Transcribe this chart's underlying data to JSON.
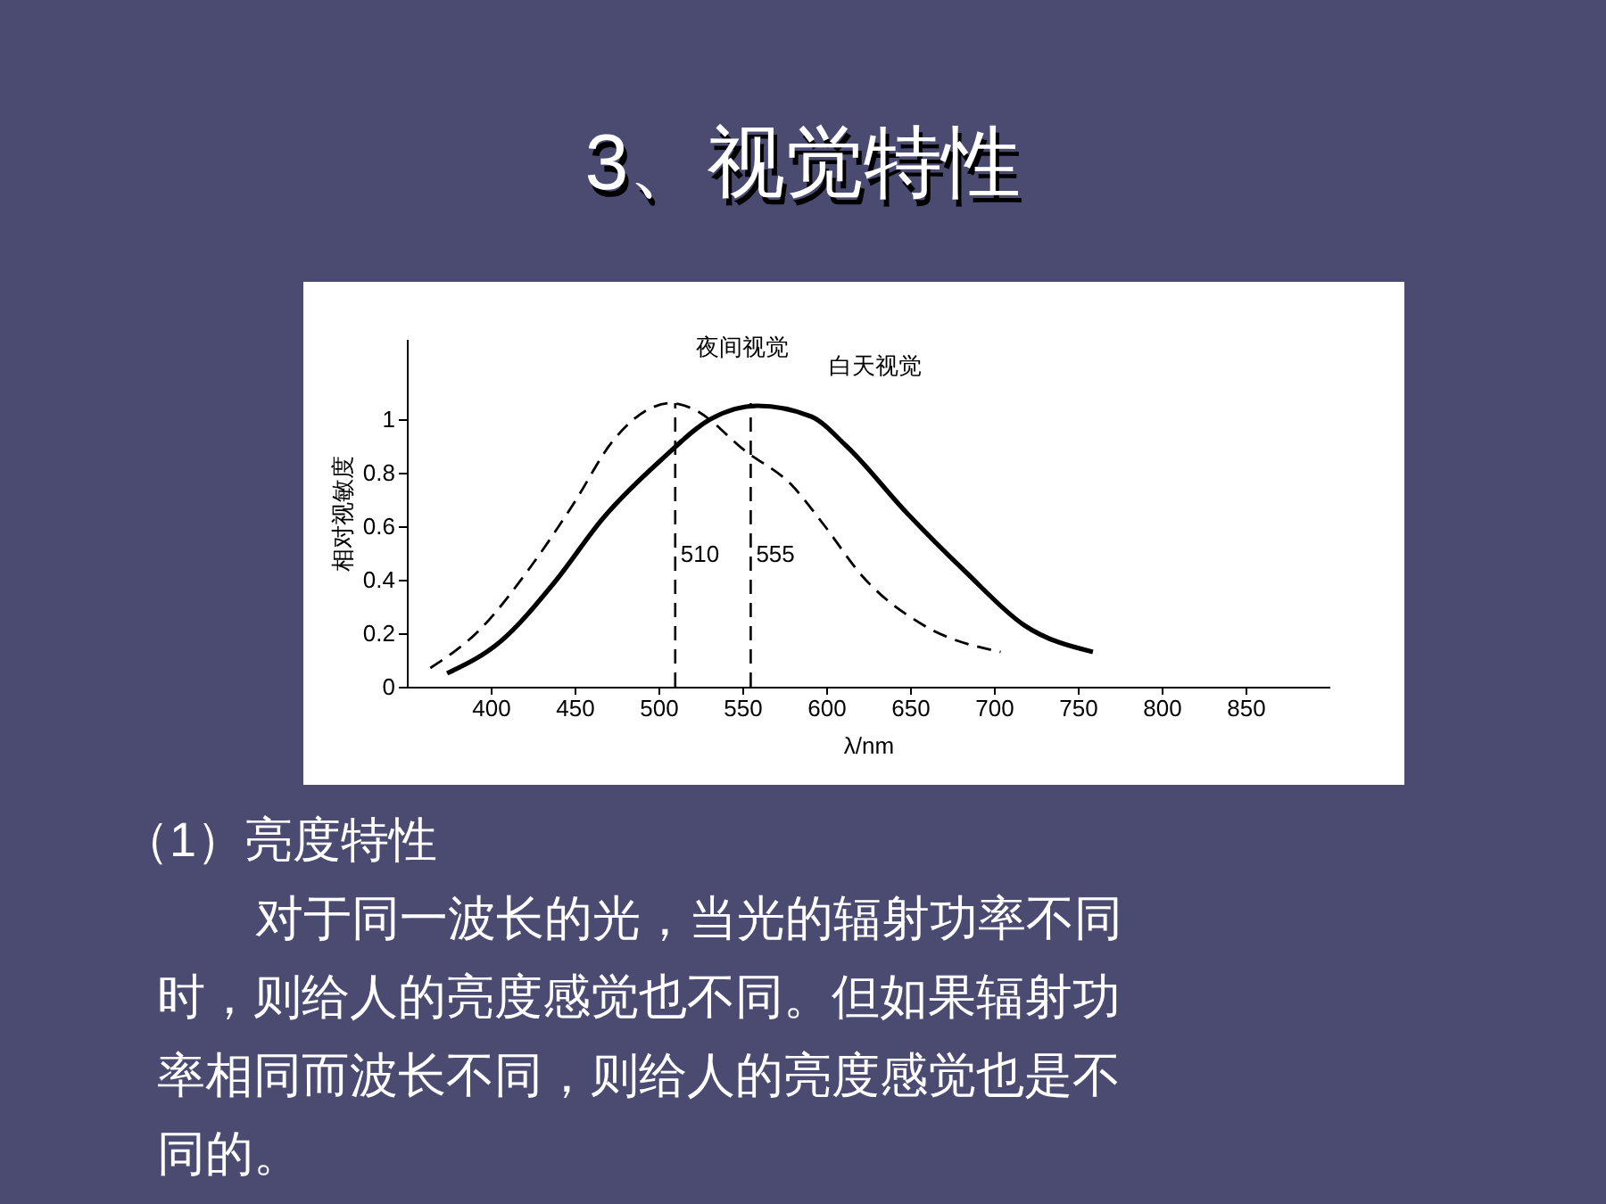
{
  "chart_data": {
    "type": "line",
    "title": "3、视觉特性",
    "xlabel": "λ/nm",
    "ylabel": "相对视敏度",
    "xlim": [
      350,
      900
    ],
    "xticks": [
      400,
      450,
      500,
      550,
      600,
      650,
      700,
      750,
      800,
      850
    ],
    "ylim": [
      0,
      1.3
    ],
    "yticks": [
      0,
      0.2,
      0.4,
      0.6,
      0.8,
      1
    ],
    "marker": "none",
    "series": [
      {
        "name": "夜间视觉",
        "color": "#000000",
        "line_style": "dashed",
        "x": [
          364,
          393,
          424,
          449,
          473,
          495,
          507,
          520,
          552,
          580,
          598,
          622,
          658,
          704
        ],
        "values": [
          0.07,
          0.21,
          0.45,
          0.68,
          0.92,
          1.04,
          1.06,
          1.04,
          0.88,
          0.75,
          0.61,
          0.41,
          0.23,
          0.13
        ]
      },
      {
        "name": "白天视觉",
        "color": "#000000",
        "line_style": "solid",
        "x": [
          374,
          406,
          438,
          467,
          502,
          531,
          559,
          591,
          612,
          648,
          683,
          718,
          759
        ],
        "values": [
          0.05,
          0.17,
          0.39,
          0.63,
          0.85,
          1.0,
          1.05,
          1.01,
          0.9,
          0.65,
          0.43,
          0.23,
          0.13
        ]
      }
    ],
    "ref_lines": [
      {
        "axis": "x",
        "value": 510,
        "label": "510",
        "line_style": "dashed"
      },
      {
        "axis": "x",
        "value": 555,
        "label": "555",
        "line_style": "dashed"
      }
    ],
    "annotations": [
      "（1）亮度特性",
      "对于同一波长的光，当光的辐射功率不同",
      "时，则给人的亮度感觉也不同。但如果辐射功",
      "率相同而波长不同，则给人的亮度感觉也是不",
      "同的。"
    ]
  }
}
